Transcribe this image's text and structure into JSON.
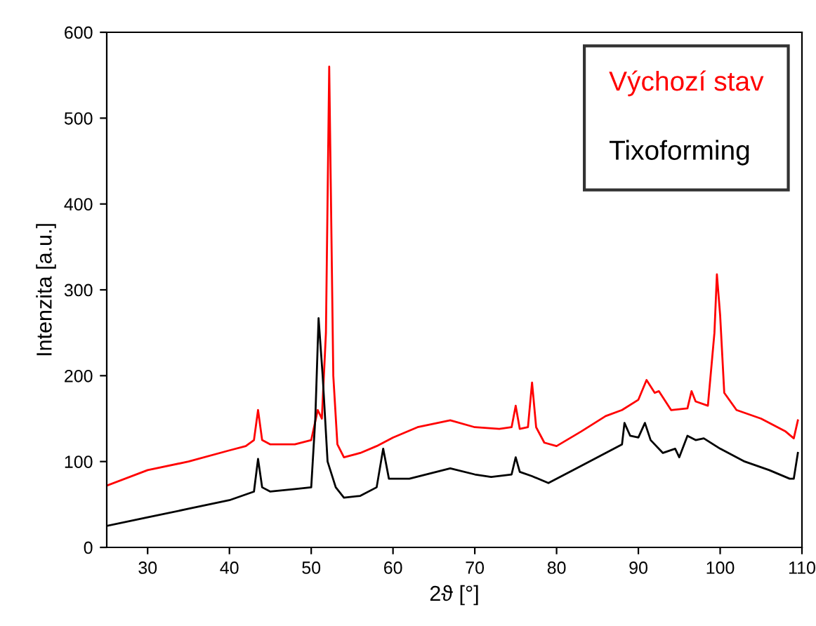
{
  "chart_data": {
    "type": "line",
    "xlabel": "2ϑ [°]",
    "ylabel": "Intenzita [a.u.]",
    "xlim": [
      25,
      110
    ],
    "ylim": [
      0,
      600
    ],
    "xticks": [
      30,
      40,
      50,
      60,
      70,
      80,
      90,
      100,
      110
    ],
    "yticks": [
      0,
      100,
      200,
      300,
      400,
      500,
      600
    ],
    "grid": false,
    "legend": "top right",
    "marker": "none",
    "line_style": "solid",
    "series": [
      {
        "name": "Výchozí stav",
        "color": "#ff0000",
        "x": [
          25,
          30,
          35,
          40,
          42,
          43,
          43.5,
          44,
          45,
          48,
          50,
          50.8,
          51.3,
          51.8,
          52.2,
          52.7,
          53.2,
          54,
          56,
          58,
          60,
          63,
          67,
          70,
          73,
          74.5,
          75,
          75.5,
          76.5,
          77,
          77.5,
          78.5,
          80,
          83,
          86,
          88,
          90,
          91,
          92,
          92.5,
          94,
          96,
          96.5,
          97,
          98.5,
          99.3,
          99.6,
          100,
          100.5,
          102,
          105,
          108,
          109,
          109.5
        ],
        "values": [
          72,
          90,
          100,
          113,
          118,
          125,
          160,
          125,
          120,
          120,
          125,
          160,
          150,
          250,
          560,
          200,
          120,
          105,
          110,
          118,
          128,
          140,
          148,
          140,
          138,
          140,
          165,
          138,
          140,
          192,
          140,
          122,
          118,
          135,
          153,
          160,
          172,
          195,
          180,
          182,
          160,
          162,
          182,
          170,
          165,
          250,
          318,
          270,
          180,
          160,
          150,
          135,
          127,
          148
        ]
      },
      {
        "name": "Tixoforming",
        "color": "#000000",
        "x": [
          25,
          30,
          35,
          40,
          43,
          43.5,
          44,
          45,
          48,
          50,
          50.5,
          50.9,
          51.4,
          52,
          53,
          54,
          56,
          58,
          58.8,
          59.5,
          62,
          67,
          70,
          72,
          74.5,
          75,
          75.5,
          77,
          79,
          82,
          86,
          88,
          88.3,
          89,
          90,
          90.8,
          91.5,
          93,
          94.5,
          95,
          96,
          97,
          98,
          100,
          103,
          106,
          108.5,
          109,
          109.5
        ],
        "values": [
          25,
          35,
          45,
          55,
          65,
          103,
          70,
          65,
          68,
          70,
          150,
          267,
          200,
          100,
          70,
          58,
          60,
          70,
          115,
          80,
          80,
          92,
          85,
          82,
          85,
          105,
          88,
          83,
          75,
          90,
          110,
          120,
          145,
          130,
          128,
          145,
          125,
          110,
          115,
          105,
          130,
          125,
          127,
          115,
          100,
          90,
          80,
          80,
          110
        ]
      }
    ]
  }
}
